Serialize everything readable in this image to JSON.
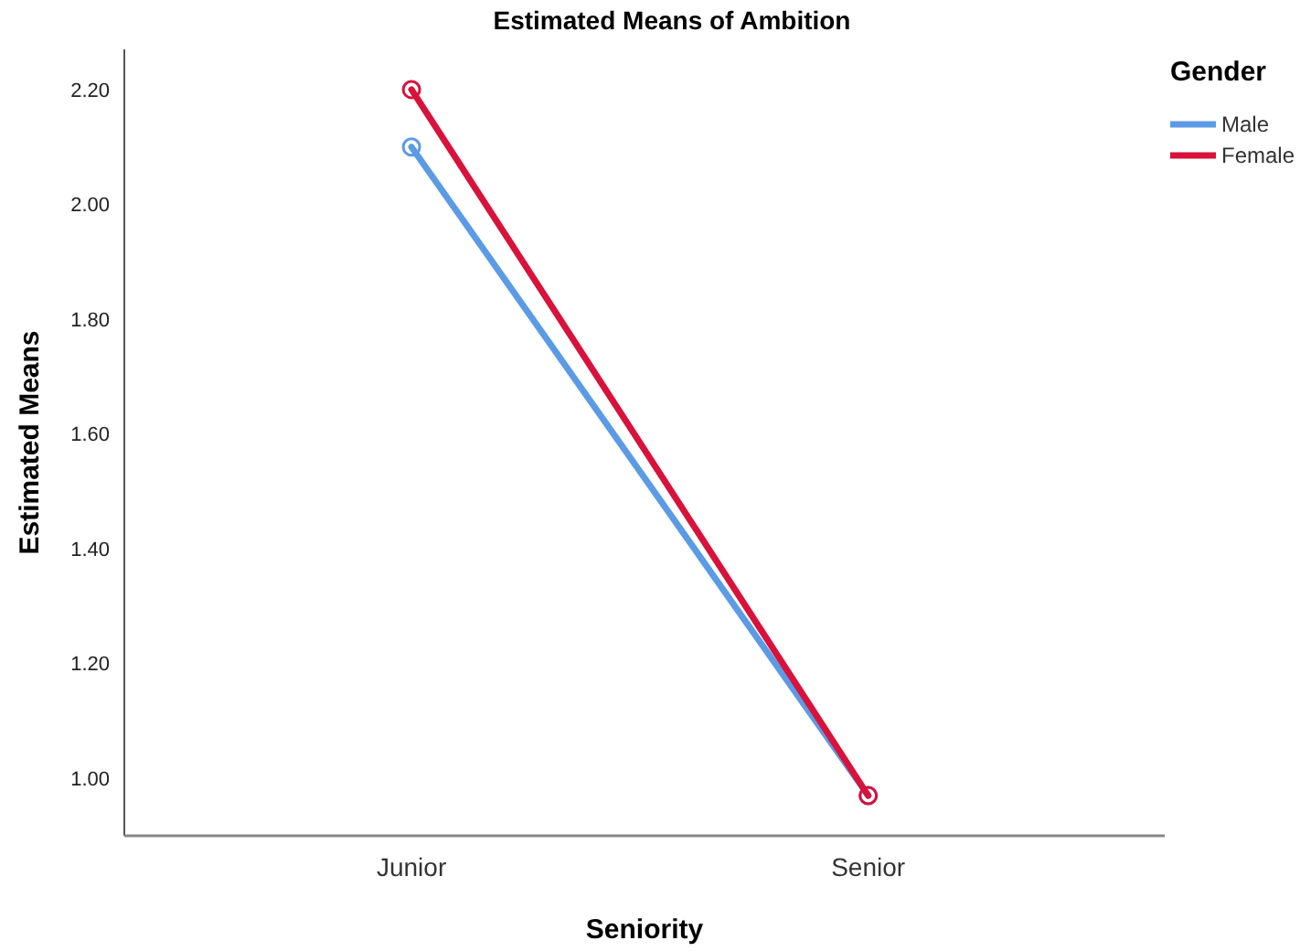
{
  "chart_data": {
    "type": "line",
    "title": "Estimated Means of Ambition",
    "xlabel": "Seniority",
    "ylabel": "Estimated Means",
    "legend_title": "Gender",
    "legend": "top right",
    "marker": "circle",
    "grid": false,
    "categories": [
      "Junior",
      "Senior"
    ],
    "ylim": [
      0.9,
      2.27
    ],
    "yticks": [
      {
        "value": 1,
        "label": "1.00"
      },
      {
        "value": 1.2,
        "label": "1.20"
      },
      {
        "value": 1.4,
        "label": "1.40"
      },
      {
        "value": 1.6,
        "label": "1.60"
      },
      {
        "value": 1.8,
        "label": "1.80"
      },
      {
        "value": 2,
        "label": "2.00"
      },
      {
        "value": 2.2,
        "label": "2.20"
      }
    ],
    "series": [
      {
        "name": "Male",
        "color": "#5b9be6",
        "values": [
          2.1,
          0.97
        ]
      },
      {
        "name": "Female",
        "color": "#d8123b",
        "values": [
          2.2,
          0.97
        ]
      }
    ]
  }
}
